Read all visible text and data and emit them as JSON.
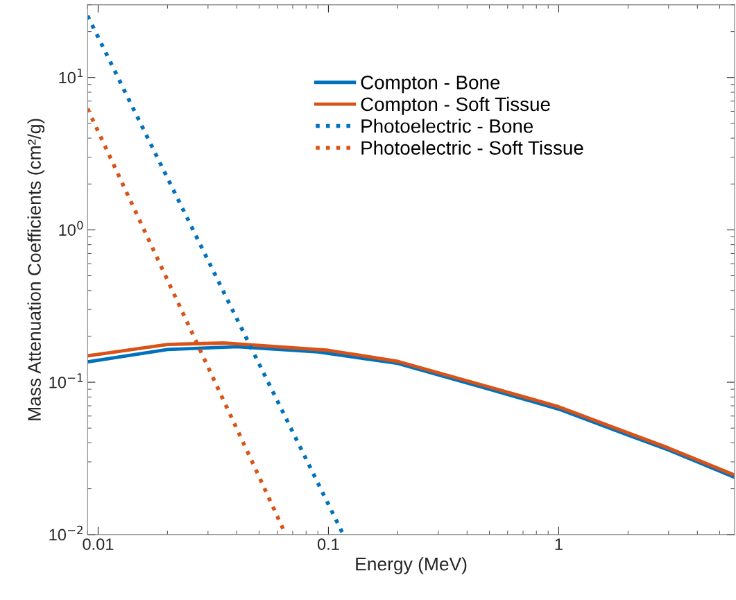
{
  "chart_data": {
    "type": "line",
    "xlabel": "Energy (MeV)",
    "ylabel": "Mass Attenuation Coefficients (cm²/g)",
    "log": "xy",
    "xlim": [
      0.009,
      5.8
    ],
    "ylim": [
      0.01,
      30
    ],
    "xticks": [
      0.01,
      0.1,
      1
    ],
    "yticks": [
      {
        "value": 0.01,
        "label": "10$^{−2}$"
      },
      {
        "value": 0.1,
        "label": "10$^{−1}$"
      },
      {
        "value": 1,
        "label": "10$^{0}$"
      },
      {
        "value": 10,
        "label": "10$^{1}$"
      }
    ],
    "grid": false,
    "legend": "top",
    "series": [
      {
        "name": "Compton - Bone",
        "color": "#0072bd",
        "line_style": "solid",
        "x": [
          0.009,
          0.02,
          0.04,
          0.09,
          0.2,
          0.5,
          1,
          2,
          3,
          5.8
        ],
        "values": [
          0.136,
          0.164,
          0.171,
          0.158,
          0.133,
          0.09,
          0.0666,
          0.045,
          0.0359,
          0.0238
        ]
      },
      {
        "name": "Compton - Soft Tissue",
        "color": "#d95319",
        "line_style": "solid",
        "x": [
          0.009,
          0.02,
          0.035,
          0.1,
          0.2,
          0.5,
          1,
          2,
          3,
          5.8
        ],
        "values": [
          0.149,
          0.177,
          0.181,
          0.162,
          0.137,
          0.093,
          0.069,
          0.0465,
          0.037,
          0.0246
        ]
      },
      {
        "name": "Photoelectric - Bone",
        "color": "#0072bd",
        "line_style": "dotted",
        "x": [
          0.009,
          0.01,
          0.02,
          0.05,
          0.1,
          0.116
        ],
        "values": [
          25.4,
          18.4,
          2.19,
          0.132,
          0.0158,
          0.01
        ]
      },
      {
        "name": "Photoelectric - Soft Tissue",
        "color": "#d95319",
        "line_style": "dotted",
        "x": [
          0.009,
          0.01,
          0.02,
          0.03,
          0.05,
          0.0652
        ],
        "values": [
          6.24,
          4.43,
          0.469,
          0.126,
          0.024,
          0.01
        ]
      }
    ]
  }
}
